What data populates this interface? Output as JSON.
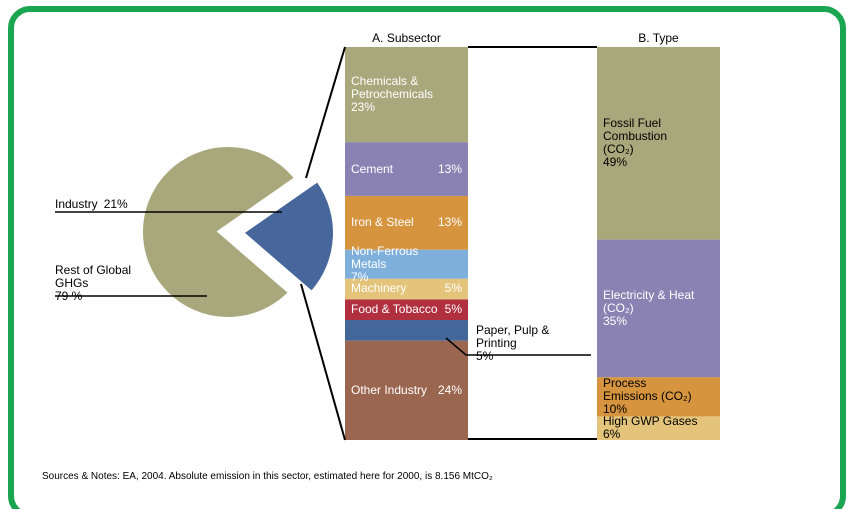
{
  "chart_data": [
    {
      "type": "pie",
      "categories": [
        "Industry",
        "Rest of Global GHGs"
      ],
      "values": [
        21,
        79
      ],
      "value_labels": [
        "21%",
        "79 %"
      ],
      "colors": [
        "#46669c",
        "#a8a87c"
      ]
    },
    {
      "type": "stacked_bar",
      "title": "A. Subsector",
      "categories": [
        "Chemicals & Petrochemicals",
        "Cement",
        "Iron & Steel",
        "Non-Ferrous Metals",
        "Machinery",
        "Food & Tobacco",
        "Paper, Pulp & Printing",
        "Other Industry"
      ],
      "values": [
        23,
        13,
        13,
        7,
        5,
        5,
        5,
        24
      ],
      "value_labels": [
        "23%",
        "13%",
        "13%",
        "7%",
        "5%",
        "5%",
        "5%",
        "24%"
      ],
      "colors": [
        "#a8a87c",
        "#8b82b4",
        "#d6943f",
        "#7fb0dc",
        "#e3c47a",
        "#b03040",
        "#44679a",
        "#9b6650"
      ],
      "label_colors": [
        "#fff",
        "#fff",
        "#fff",
        "#fff",
        "#fff",
        "#fff",
        "#000",
        "#fff"
      ]
    },
    {
      "type": "stacked_bar",
      "title": "B. Type",
      "categories": [
        "Fossil Fuel Combustion (CO₂)",
        "Electricity & Heat (CO₂)",
        "Process Emissions (CO₂)",
        "High GWP Gases"
      ],
      "values": [
        49,
        35,
        10,
        6
      ],
      "value_labels": [
        "49%",
        "35%",
        "10%",
        "6%"
      ],
      "colors": [
        "#a8a87c",
        "#8b82b4",
        "#d6943f",
        "#e3c47a"
      ],
      "label_colors": [
        "#000",
        "#fff",
        "#000",
        "#000"
      ]
    }
  ],
  "note": "Sources & Notes: EA, 2004. Absolute emission in this sector, estimated here for 2000, is 8.156 MtCO₂"
}
